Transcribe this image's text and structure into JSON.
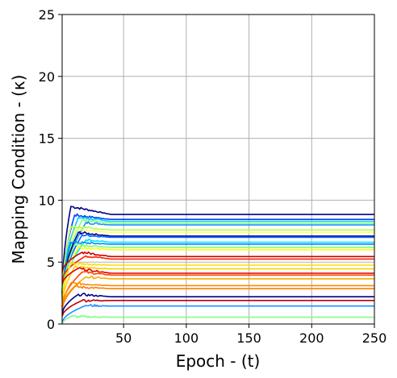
{
  "chart_data": {
    "type": "line",
    "xlabel": "Epoch - (t)",
    "ylabel": "Mapping Condition - (κ)",
    "xlim": [
      1,
      250
    ],
    "ylim": [
      0,
      25
    ],
    "xticks": [
      50,
      100,
      150,
      200,
      250
    ],
    "yticks": [
      0,
      5,
      10,
      15,
      20,
      25
    ],
    "grid": true,
    "legend": "none",
    "colormap": "jet",
    "series": [
      {
        "color": "#00008b",
        "start": 2.5,
        "peak": 9.5,
        "final": 8.85
      },
      {
        "color": "#0044ff",
        "start": 2.6,
        "peak": 8.8,
        "final": 8.45
      },
      {
        "color": "#00ccff",
        "start": 2.8,
        "peak": 8.6,
        "final": 8.3
      },
      {
        "color": "#7fff7f",
        "start": 2.6,
        "peak": 8.4,
        "final": 8.15
      },
      {
        "color": "#1e90ff",
        "start": 2.4,
        "peak": 8.2,
        "final": 8.0
      },
      {
        "color": "#b0ff50",
        "start": 2.2,
        "peak": 7.9,
        "final": 7.6
      },
      {
        "color": "#ffff66",
        "start": 2.0,
        "peak": 7.6,
        "final": 7.4
      },
      {
        "color": "#00008b",
        "start": 2.5,
        "peak": 7.4,
        "final": 7.1
      },
      {
        "color": "#0066ff",
        "start": 2.3,
        "peak": 7.2,
        "final": 7.0
      },
      {
        "color": "#00e5ff",
        "start": 2.2,
        "peak": 6.8,
        "final": 6.6
      },
      {
        "color": "#0088ff",
        "start": 2.1,
        "peak": 6.6,
        "final": 6.45
      },
      {
        "color": "#7cff79",
        "start": 2.0,
        "peak": 6.4,
        "final": 6.2
      },
      {
        "color": "#ffff00",
        "start": 1.8,
        "peak": 6.2,
        "final": 6.0
      },
      {
        "color": "#cc0000",
        "start": 4.2,
        "peak": 5.8,
        "final": 5.45
      },
      {
        "color": "#ff2200",
        "start": 3.5,
        "peak": 5.5,
        "final": 5.25
      },
      {
        "color": "#ffdd00",
        "start": 1.6,
        "peak": 4.9,
        "final": 4.75
      },
      {
        "color": "#ffcc00",
        "start": 1.5,
        "peak": 4.6,
        "final": 4.45
      },
      {
        "color": "#dd0000",
        "start": 3.2,
        "peak": 4.5,
        "final": 4.1
      },
      {
        "color": "#ff4400",
        "start": 1.4,
        "peak": 4.2,
        "final": 3.95
      },
      {
        "color": "#ffaa00",
        "start": 1.3,
        "peak": 3.8,
        "final": 3.65
      },
      {
        "color": "#ff8800",
        "start": 1.2,
        "peak": 3.3,
        "final": 3.1
      },
      {
        "color": "#ff7f00",
        "start": 1.1,
        "peak": 3.0,
        "final": 2.85
      },
      {
        "color": "#00008b",
        "start": 0.8,
        "peak": 2.4,
        "final": 2.2
      },
      {
        "color": "#bb0000",
        "start": 0.6,
        "peak": 1.9,
        "final": 1.9
      },
      {
        "color": "#1e90ff",
        "start": 0.1,
        "peak": 1.5,
        "final": 1.45
      },
      {
        "color": "#80ff80",
        "start": 0.0,
        "peak": 0.6,
        "final": 0.55
      }
    ]
  }
}
